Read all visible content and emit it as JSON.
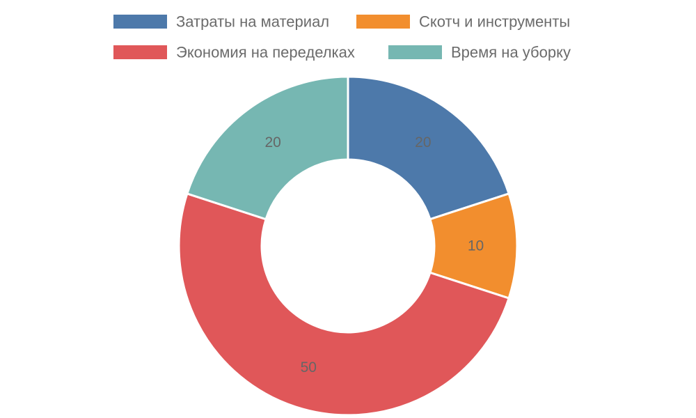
{
  "chart_data": {
    "type": "pie",
    "variant": "donut",
    "title": "",
    "legend_position": "top",
    "categories": [
      "Затраты на материал",
      "Скотч и инструменты",
      "Экономия на переделках",
      "Время на уборку"
    ],
    "values": [
      20,
      10,
      50,
      20
    ],
    "data_labels": [
      "20",
      "10",
      "50",
      "20"
    ],
    "colors": [
      "#4d79aa",
      "#f28e2e",
      "#e05759",
      "#76b7b2"
    ]
  }
}
